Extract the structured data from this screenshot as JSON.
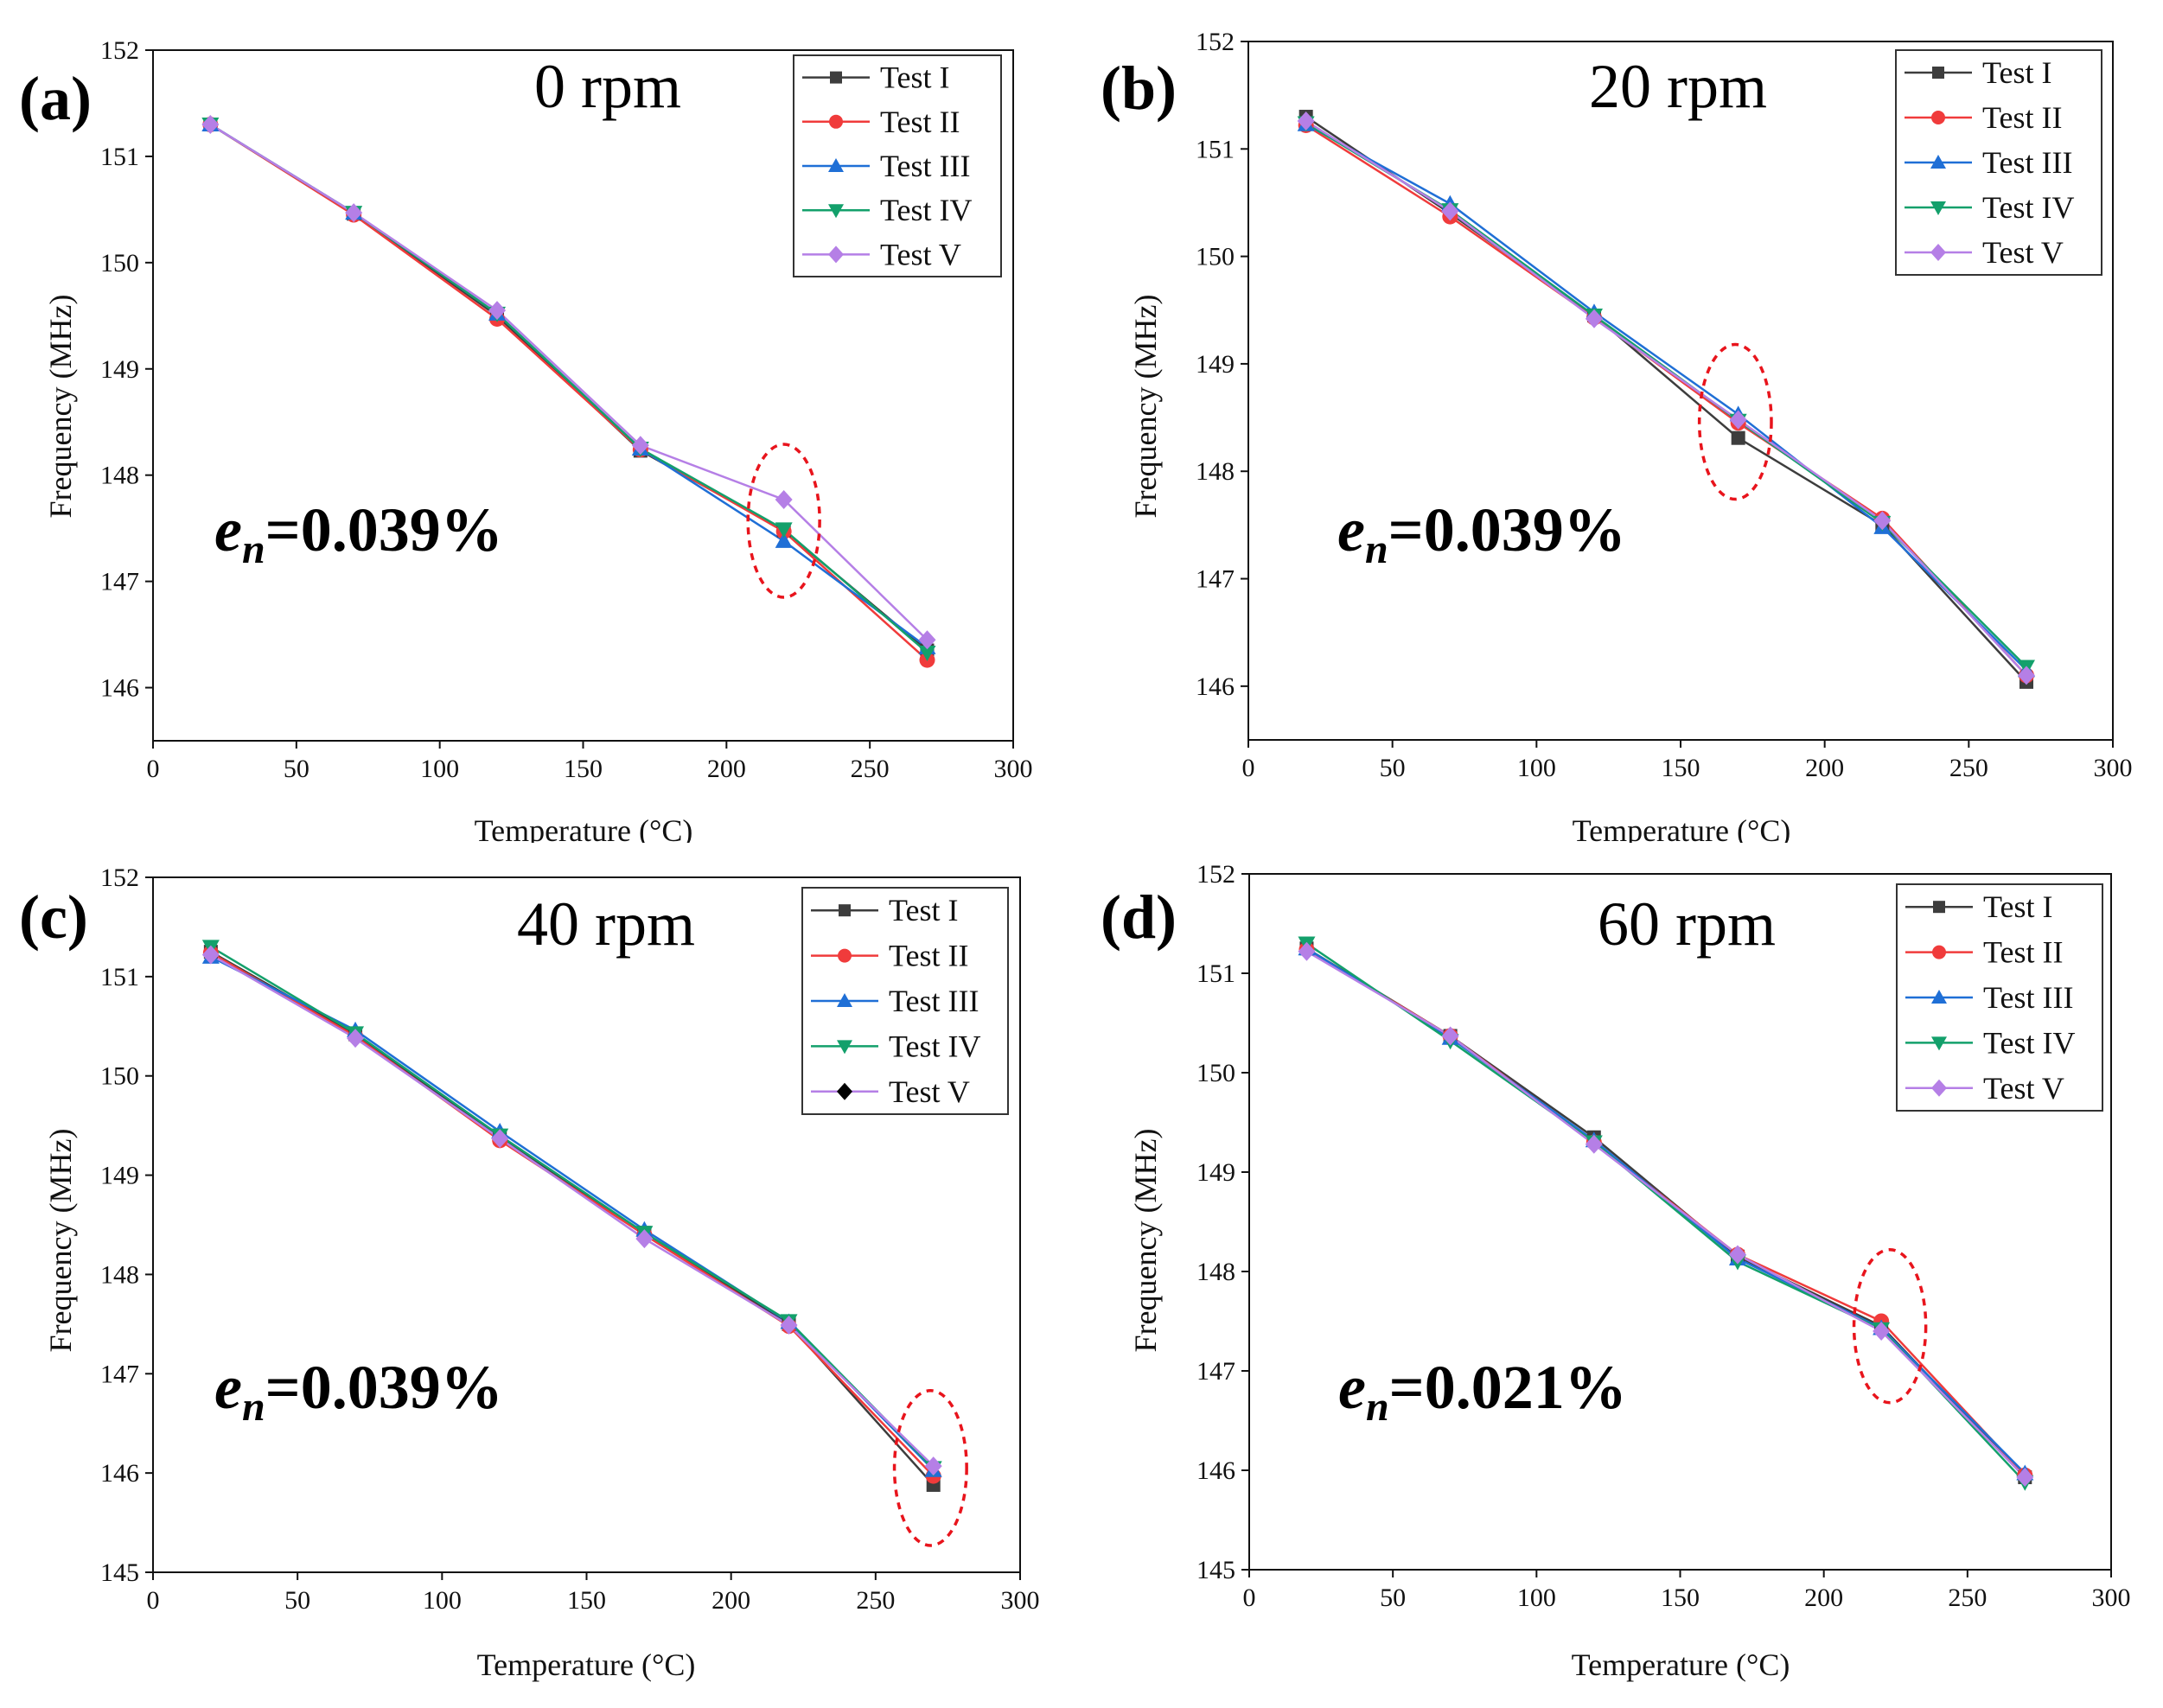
{
  "series_styles": [
    {
      "name": "Test I",
      "color": "#3d3d3d",
      "marker": "square"
    },
    {
      "name": "Test II",
      "color": "#f03b3b",
      "marker": "circle"
    },
    {
      "name": "Test III",
      "color": "#1f6fd6",
      "marker": "triangle-up"
    },
    {
      "name": "Test IV",
      "color": "#13a06b",
      "marker": "triangle-down"
    },
    {
      "name": "Test V",
      "color": "#b57fe6",
      "marker": "diamond"
    }
  ],
  "chart_data": [
    {
      "type": "line",
      "panel_label": "(a)",
      "title": "0 rpm",
      "error_label": {
        "symbol": "e",
        "subscript": "n",
        "value": "=0.039%"
      },
      "xlabel": "Temperature (°C)",
      "ylabel": "Frequency (MHz)",
      "xlim": [
        0,
        300
      ],
      "ylim": [
        145.5,
        152
      ],
      "xticks": [
        0,
        50,
        100,
        150,
        200,
        250,
        300
      ],
      "yticks": [
        146,
        147,
        148,
        149,
        150,
        151,
        152
      ],
      "x": [
        20,
        70,
        120,
        170,
        220,
        270
      ],
      "legend_position": "top-right",
      "legend_labels": [
        "Test I",
        "Test II",
        "Test III",
        "Test IV",
        "Test V"
      ],
      "highlight": {
        "x": 220,
        "y": 147.57,
        "rx": 12.5,
        "ry": 0.72
      },
      "series": [
        {
          "name": "Test I",
          "values": [
            151.3,
            150.46,
            149.5,
            148.23,
            147.48,
            146.35
          ]
        },
        {
          "name": "Test II",
          "values": [
            151.3,
            150.45,
            149.47,
            148.24,
            147.47,
            146.26
          ]
        },
        {
          "name": "Test III",
          "values": [
            151.3,
            150.47,
            149.52,
            148.25,
            147.38,
            146.38
          ]
        },
        {
          "name": "Test IV",
          "values": [
            151.3,
            150.47,
            149.52,
            148.25,
            147.49,
            146.33
          ]
        },
        {
          "name": "Test V",
          "values": [
            151.3,
            150.47,
            149.55,
            148.28,
            147.77,
            146.45
          ]
        }
      ]
    },
    {
      "type": "line",
      "panel_label": "(b)",
      "title": "20 rpm",
      "error_label": {
        "symbol": "e",
        "subscript": "n",
        "value": "=0.039%"
      },
      "xlabel": "Temperature (°C)",
      "ylabel": "Frequency (MHz)",
      "xlim": [
        0,
        300
      ],
      "ylim": [
        145.5,
        152
      ],
      "xticks": [
        0,
        50,
        100,
        150,
        200,
        250,
        300
      ],
      "yticks": [
        146,
        147,
        148,
        149,
        150,
        151,
        152
      ],
      "x": [
        20,
        70,
        120,
        170,
        220,
        270
      ],
      "legend_position": "top-right",
      "legend_labels": [
        "Test I",
        "Test II",
        "Test III",
        "Test IV",
        "Test V"
      ],
      "highlight": {
        "x": 169,
        "y": 148.46,
        "rx": 12.5,
        "ry": 0.72
      },
      "series": [
        {
          "name": "Test I",
          "values": [
            151.3,
            150.4,
            149.45,
            148.31,
            147.5,
            146.04
          ]
        },
        {
          "name": "Test II",
          "values": [
            151.22,
            150.37,
            149.43,
            148.45,
            147.56,
            146.1
          ]
        },
        {
          "name": "Test III",
          "values": [
            151.23,
            150.49,
            149.48,
            148.53,
            147.48,
            146.15
          ]
        },
        {
          "name": "Test IV",
          "values": [
            151.24,
            150.43,
            149.45,
            148.47,
            147.52,
            146.18
          ]
        },
        {
          "name": "Test V",
          "values": [
            151.26,
            150.42,
            149.42,
            148.48,
            147.54,
            146.1
          ]
        }
      ]
    },
    {
      "type": "line",
      "panel_label": "(c)",
      "title": "40 rpm",
      "error_label": {
        "symbol": "e",
        "subscript": "n",
        "value": "=0.039%"
      },
      "xlabel": "Temperature (°C)",
      "ylabel": "Frequency (MHz)",
      "xlim": [
        0,
        300
      ],
      "ylim": [
        145,
        152
      ],
      "xticks": [
        0,
        50,
        100,
        150,
        200,
        250,
        300
      ],
      "yticks": [
        145,
        146,
        147,
        148,
        149,
        150,
        151,
        152
      ],
      "x": [
        20,
        70,
        120,
        170,
        220,
        270
      ],
      "legend_position": "top-right",
      "legend_labels": [
        "Test I",
        "Test II",
        "Test III",
        "Test IV",
        "Test V"
      ],
      "legend_last_marker_color": "#000000",
      "highlight": {
        "x": 269,
        "y": 146.05,
        "rx": 12.5,
        "ry": 0.78
      },
      "series": [
        {
          "name": "Test I",
          "values": [
            151.25,
            150.42,
            149.38,
            148.42,
            147.5,
            145.88
          ]
        },
        {
          "name": "Test II",
          "values": [
            151.24,
            150.4,
            149.35,
            148.4,
            147.48,
            145.97
          ]
        },
        {
          "name": "Test III",
          "values": [
            151.2,
            150.46,
            149.44,
            148.45,
            147.52,
            146.03
          ]
        },
        {
          "name": "Test IV",
          "values": [
            151.3,
            150.43,
            149.4,
            148.42,
            147.53,
            146.05
          ]
        },
        {
          "name": "Test V",
          "values": [
            151.22,
            150.38,
            149.37,
            148.36,
            147.49,
            146.07
          ]
        }
      ]
    },
    {
      "type": "line",
      "panel_label": "(d)",
      "title": "60 rpm",
      "error_label": {
        "symbol": "e",
        "subscript": "n",
        "value": "=0.021%"
      },
      "xlabel": "Temperature (°C)",
      "ylabel": "Frequency (MHz)",
      "xlim": [
        0,
        300
      ],
      "ylim": [
        145,
        152
      ],
      "xticks": [
        0,
        50,
        100,
        150,
        200,
        250,
        300
      ],
      "yticks": [
        145,
        146,
        147,
        148,
        149,
        150,
        151,
        152
      ],
      "x": [
        20,
        70,
        120,
        170,
        220,
        270
      ],
      "legend_position": "top-right",
      "legend_labels": [
        "Test I",
        "Test II",
        "Test III",
        "Test IV",
        "Test V"
      ],
      "highlight": {
        "x": 223,
        "y": 147.45,
        "rx": 12.5,
        "ry": 0.77
      },
      "series": [
        {
          "name": "Test I",
          "values": [
            151.25,
            150.37,
            149.35,
            148.15,
            147.45,
            145.93
          ]
        },
        {
          "name": "Test II",
          "values": [
            151.24,
            150.37,
            149.3,
            148.17,
            147.5,
            145.95
          ]
        },
        {
          "name": "Test III",
          "values": [
            151.25,
            150.35,
            149.32,
            148.13,
            147.43,
            145.97
          ]
        },
        {
          "name": "Test IV",
          "values": [
            151.3,
            150.32,
            149.3,
            148.1,
            147.42,
            145.88
          ]
        },
        {
          "name": "Test V",
          "values": [
            151.22,
            150.37,
            149.28,
            148.17,
            147.4,
            145.93
          ]
        }
      ]
    }
  ]
}
